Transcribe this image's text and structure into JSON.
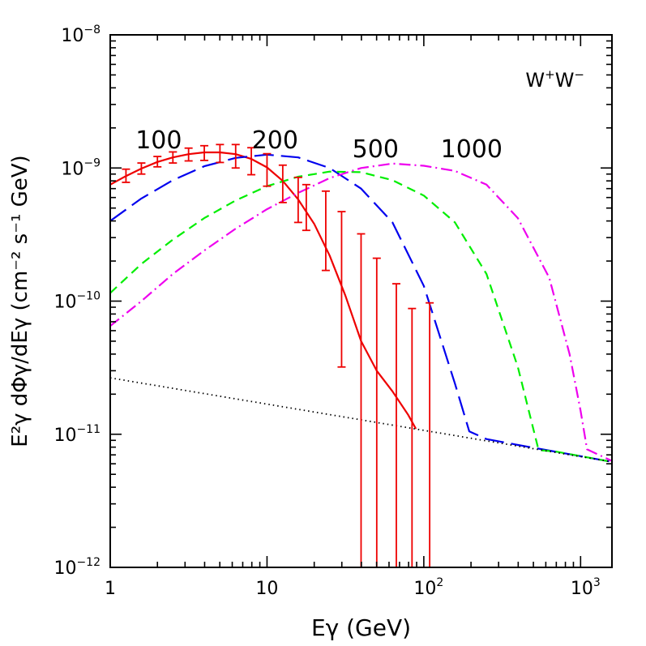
{
  "chart_data": {
    "type": "line",
    "title": "",
    "xlabel": "Eγ (GeV)",
    "ylabel": "E²γ dΦγ/dEγ (cm⁻² s⁻¹ GeV)",
    "x_scale": "log",
    "y_scale": "log",
    "xlim": [
      1,
      1585
    ],
    "ylim": [
      1e-12,
      1e-08
    ],
    "grid": false,
    "legend": "none",
    "x_ticks": [
      {
        "value": 1,
        "base": "1",
        "exp": ""
      },
      {
        "value": 10,
        "base": "10",
        "exp": ""
      },
      {
        "value": 100,
        "base": "10",
        "exp": "2"
      },
      {
        "value": 1000,
        "base": "10",
        "exp": "3"
      }
    ],
    "y_ticks": [
      {
        "value": 1e-12,
        "base": "10",
        "exp": "−12"
      },
      {
        "value": 1e-11,
        "base": "10",
        "exp": "−11"
      },
      {
        "value": 1e-10,
        "base": "10",
        "exp": "−10"
      },
      {
        "value": 1e-09,
        "base": "10",
        "exp": "−9"
      },
      {
        "value": 1e-08,
        "base": "10",
        "exp": "−8"
      }
    ],
    "process_label": {
      "main": "W",
      "sup1": "+",
      "mid": "W",
      "sup2": "−"
    },
    "mass_labels": [
      {
        "text": "100",
        "x": 1.45,
        "y": 1.4e-09
      },
      {
        "text": "200",
        "x": 8.0,
        "y": 1.4e-09
      },
      {
        "text": "500",
        "x": 35.0,
        "y": 1.2e-09
      },
      {
        "text": "1000",
        "x": 128.0,
        "y": 1.2e-09
      }
    ],
    "series": [
      {
        "color": "#ee0000",
        "dash": "",
        "x": [
          1,
          1.26,
          1.58,
          2,
          2.51,
          3.16,
          3.98,
          5.01,
          6.31,
          7.94,
          10,
          12.6,
          15.8,
          20,
          25.1,
          31.6,
          39.8,
          50.1,
          63.1,
          79.4,
          89
        ],
        "y": [
          7.5e-10,
          8.7e-10,
          9.9e-10,
          1.11e-09,
          1.2e-09,
          1.27e-09,
          1.31e-09,
          1.31e-09,
          1.27e-09,
          1.17e-09,
          1.01e-09,
          8e-10,
          5.8e-10,
          3.8e-10,
          2.2e-10,
          1.1e-10,
          5e-11,
          3e-11,
          2.1e-11,
          1.4e-11,
          1.1e-11
        ]
      },
      {
        "color": "#0000ee",
        "dash": "24,9",
        "x": [
          1,
          1.58,
          2.51,
          3.98,
          6.31,
          10,
          15.8,
          25.1,
          39.8,
          63.1,
          100,
          158,
          195,
          251,
          400,
          1585
        ],
        "y": [
          4e-10,
          5.9e-10,
          8.1e-10,
          1.03e-09,
          1.19e-09,
          1.26e-09,
          1.2e-09,
          1e-09,
          7e-10,
          3.9e-10,
          1.3e-10,
          2.4e-11,
          1.05e-11,
          9.2e-12,
          8.3e-12,
          6.2e-12
        ]
      },
      {
        "color": "#00ee00",
        "dash": "11,7",
        "x": [
          1,
          1.58,
          2.51,
          3.98,
          6.31,
          10,
          15.8,
          25.1,
          39.8,
          63.1,
          100,
          158,
          251,
          398,
          540,
          700,
          1585
        ],
        "y": [
          1.15e-10,
          1.9e-10,
          2.9e-10,
          4.2e-10,
          5.7e-10,
          7.3e-10,
          8.6e-10,
          9.4e-10,
          9.3e-10,
          8.1e-10,
          6.2e-10,
          3.9e-10,
          1.6e-10,
          3.2e-11,
          7.6e-12,
          7.4e-12,
          6.2e-12
        ]
      },
      {
        "color": "#ee00ee",
        "dash": "14,5,2,5",
        "x": [
          1,
          1.58,
          2.51,
          3.98,
          6.31,
          10,
          15.8,
          25.1,
          39.8,
          63.1,
          100,
          158,
          251,
          398,
          631,
          850,
          1000,
          1100,
          1585
        ],
        "y": [
          6.5e-11,
          1e-10,
          1.6e-10,
          2.4e-10,
          3.5e-10,
          4.9e-10,
          6.5e-10,
          8.4e-10,
          1e-09,
          1.08e-09,
          1.04e-09,
          9.5e-10,
          7.5e-10,
          4.2e-10,
          1.5e-10,
          4e-11,
          1.5e-11,
          7.7e-12,
          6.3e-12
        ]
      },
      {
        "color": "#000000",
        "dash": "1.5,4",
        "x": [
          1,
          1585
        ],
        "y": [
          2.65e-11,
          6.2e-12
        ]
      }
    ],
    "error_bars": {
      "color": "#ee0000",
      "points": [
        {
          "x": 1.26,
          "low": 7.8e-10,
          "high": 9.8e-10
        },
        {
          "x": 1.58,
          "low": 9e-10,
          "high": 1.09e-09
        },
        {
          "x": 2.0,
          "low": 1.02e-09,
          "high": 1.22e-09
        },
        {
          "x": 2.51,
          "low": 1.09e-09,
          "high": 1.32e-09
        },
        {
          "x": 3.16,
          "low": 1.13e-09,
          "high": 1.41e-09
        },
        {
          "x": 3.98,
          "low": 1.14e-09,
          "high": 1.47e-09
        },
        {
          "x": 5.01,
          "low": 1.1e-09,
          "high": 1.5e-09
        },
        {
          "x": 6.31,
          "low": 1e-09,
          "high": 1.5e-09
        },
        {
          "x": 7.94,
          "low": 8.9e-10,
          "high": 1.42e-09
        },
        {
          "x": 10.0,
          "low": 7.3e-10,
          "high": 1.28e-09
        },
        {
          "x": 12.6,
          "low": 5.5e-10,
          "high": 1.05e-09
        },
        {
          "x": 15.8,
          "low": 3.9e-10,
          "high": 8.5e-10
        },
        {
          "x": 17.8,
          "low": 3.4e-10,
          "high": 7.5e-10
        },
        {
          "x": 23.7,
          "low": 1.7e-10,
          "high": 6.7e-10
        },
        {
          "x": 29.9,
          "low": 3.2e-11,
          "high": 4.7e-10
        },
        {
          "x": 39.8,
          "low": 1e-12,
          "high": 3.2e-10
        },
        {
          "x": 50.1,
          "low": 1e-12,
          "high": 2.1e-10
        },
        {
          "x": 66.8,
          "low": 1e-12,
          "high": 1.35e-10
        },
        {
          "x": 84.1,
          "low": 1e-12,
          "high": 8.8e-11
        },
        {
          "x": 109,
          "low": 1e-12,
          "high": 9.7e-11
        }
      ]
    }
  }
}
